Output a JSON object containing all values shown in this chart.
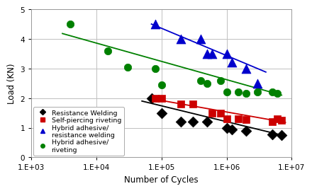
{
  "title": "",
  "xlabel": "Number of Cycles",
  "ylabel": "Load (KN)",
  "xlim_log": [
    3,
    7
  ],
  "ylim": [
    0,
    5
  ],
  "yticks": [
    0,
    1,
    2,
    3,
    4,
    5
  ],
  "xtick_labels": [
    "1.E+03",
    "1.E+04",
    "1.E+05",
    "1.E+06",
    "1.E+07"
  ],
  "xtick_vals": [
    1000,
    10000,
    100000,
    1000000,
    10000000
  ],
  "resistance_welding": {
    "label": "Resistance Welding",
    "color": "#000000",
    "marker": "D",
    "markersize": 4,
    "scatter_x": [
      70000,
      100000,
      200000,
      300000,
      500000,
      1000000,
      1200000,
      2000000,
      5000000,
      7000000
    ],
    "scatter_y": [
      2.0,
      1.5,
      1.2,
      1.2,
      1.2,
      1.0,
      0.95,
      0.9,
      0.78,
      0.75
    ],
    "fit_x": [
      50000,
      8000000
    ],
    "fit_y": [
      1.9,
      0.72
    ]
  },
  "self_piercing": {
    "label": "Self-piercing riveting",
    "color": "#cc0000",
    "marker": "s",
    "markersize": 4,
    "scatter_x": [
      80000,
      100000,
      200000,
      300000,
      600000,
      800000,
      1000000,
      1500000,
      2000000,
      5000000,
      6000000,
      7000000
    ],
    "scatter_y": [
      2.0,
      2.0,
      1.8,
      1.8,
      1.5,
      1.5,
      1.3,
      1.3,
      1.28,
      1.2,
      1.3,
      1.25
    ],
    "fit_x": [
      70000,
      8000000
    ],
    "fit_y": [
      1.98,
      1.18
    ]
  },
  "hybrid_resistance": {
    "label": "Hybrid adhesive/\nresistance welding",
    "color": "#0000cc",
    "marker": "^",
    "markersize": 5,
    "scatter_x": [
      80000,
      200000,
      400000,
      500000,
      600000,
      1000000,
      1200000,
      2000000,
      3000000
    ],
    "scatter_y": [
      4.5,
      4.0,
      4.0,
      3.5,
      3.5,
      3.5,
      3.2,
      3.0,
      2.5
    ],
    "fit_x": [
      70000,
      4000000
    ],
    "fit_y": [
      4.5,
      2.88
    ]
  },
  "hybrid_riveting": {
    "label": "Hybrid adhesive/\nriveting",
    "color": "#008000",
    "marker": "o",
    "markersize": 4,
    "scatter_x": [
      4000,
      15000,
      30000,
      80000,
      100000,
      400000,
      500000,
      800000,
      1000000,
      1500000,
      2000000,
      3000000,
      5000000,
      6000000
    ],
    "scatter_y": [
      4.5,
      3.6,
      3.05,
      3.0,
      2.45,
      2.6,
      2.5,
      2.6,
      2.2,
      2.2,
      2.15,
      2.2,
      2.2,
      2.15
    ],
    "fit_x": [
      3000,
      7000000
    ],
    "fit_y": [
      4.18,
      2.1
    ]
  },
  "background_color": "#ffffff",
  "grid_color": "#c0c0c0",
  "legend_fontsize": 6.8,
  "tick_fontsize": 7.5,
  "axis_label_fontsize": 8.5
}
